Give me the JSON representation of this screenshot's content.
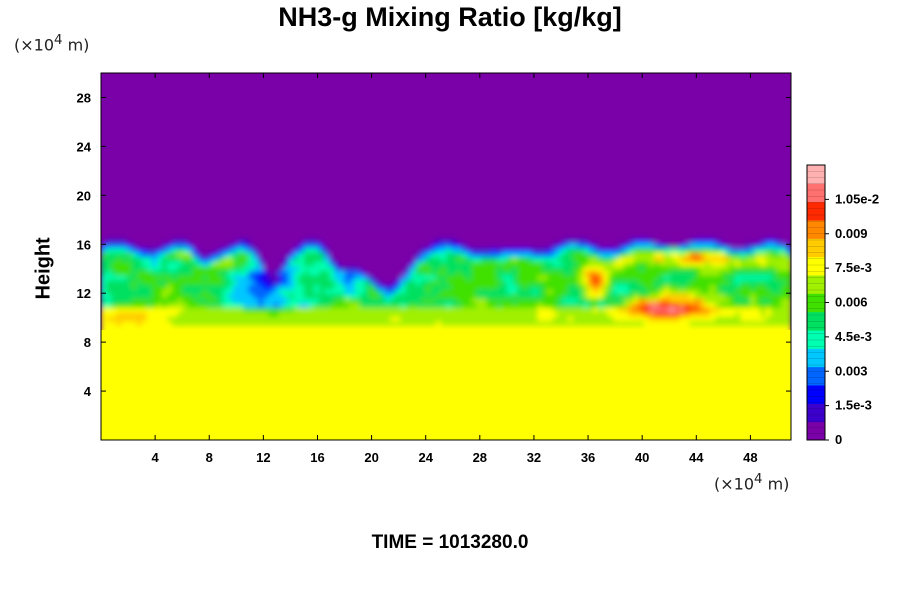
{
  "chart_data": {
    "type": "heatmap",
    "title": "NH3-g Mixing Ratio [kg/kg]",
    "ylabel": "Height",
    "x_unit_label": "(×10",
    "x_unit_exp": "4",
    "x_unit_suffix": " m)",
    "y_unit_label": "(×10",
    "y_unit_exp": "4",
    "y_unit_suffix": " m)",
    "xlim": [
      0,
      51
    ],
    "ylim": [
      0,
      30
    ],
    "x_ticks": [
      4,
      8,
      12,
      16,
      20,
      24,
      28,
      32,
      36,
      40,
      44,
      48
    ],
    "y_ticks": [
      4,
      8,
      12,
      16,
      20,
      24,
      28
    ],
    "x_tick_labels": [
      "4",
      "8",
      "12",
      "16",
      "20",
      "24",
      "28",
      "32",
      "36",
      "40",
      "44",
      "48"
    ],
    "y_tick_labels": [
      "4",
      "8",
      "12",
      "16",
      "20",
      "24",
      "28"
    ],
    "colorbar": {
      "min": 0,
      "max": 0.012,
      "tick_values": [
        0,
        0.0015,
        0.003,
        0.0045,
        0.006,
        0.0075,
        0.009,
        0.0105
      ],
      "tick_labels": [
        "0",
        "1.5e-3",
        "0.003",
        "4.5e-3",
        "0.006",
        "7.5e-3",
        "0.009",
        "1.05e-2"
      ],
      "colors": [
        "#7a00a8",
        "#3c00cc",
        "#0000ff",
        "#0066ff",
        "#00c8ff",
        "#00ffb0",
        "#00e060",
        "#40e000",
        "#a0f000",
        "#ffff00",
        "#ffcc00",
        "#ff8800",
        "#ff2a00",
        "#ff7070",
        "#ffb0b0"
      ]
    },
    "field_summary": {
      "bottom_layer_value": 0.0078,
      "top_layer_value": 0
    }
  },
  "time_label": "TIME = 1013280.0"
}
